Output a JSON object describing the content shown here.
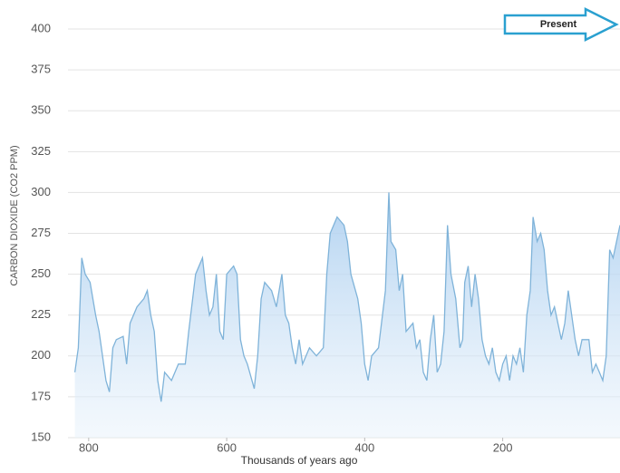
{
  "chart_data": {
    "type": "area",
    "y_label": "CARBON DIOXIDE (CO2 PPM)",
    "x_label": "Thousands of years ago",
    "annotation": "Present",
    "x": [
      820,
      815,
      810,
      805,
      798,
      790,
      785,
      780,
      775,
      770,
      765,
      760,
      750,
      745,
      740,
      730,
      720,
      715,
      710,
      705,
      700,
      695,
      690,
      680,
      670,
      660,
      655,
      645,
      635,
      630,
      625,
      620,
      615,
      610,
      605,
      600,
      590,
      585,
      580,
      575,
      570,
      560,
      555,
      550,
      545,
      535,
      528,
      520,
      515,
      510,
      505,
      500,
      495,
      490,
      480,
      470,
      460,
      455,
      450,
      440,
      430,
      425,
      420,
      410,
      405,
      400,
      395,
      390,
      380,
      370,
      365,
      362,
      355,
      350,
      345,
      340,
      330,
      325,
      320,
      315,
      310,
      305,
      300,
      295,
      290,
      285,
      280,
      275,
      268,
      262,
      258,
      255,
      250,
      245,
      240,
      235,
      230,
      225,
      220,
      215,
      210,
      205,
      200,
      195,
      190,
      185,
      180,
      175,
      170,
      165,
      160,
      156,
      150,
      145,
      140,
      135,
      130,
      125,
      120,
      115,
      110,
      105,
      100,
      95,
      90,
      85,
      75,
      70,
      65,
      60,
      55,
      50,
      45,
      40,
      35,
      30
    ],
    "series": [
      {
        "name": "CO2",
        "color": "#7fb3d9",
        "values": [
          190,
          205,
          260,
          250,
          245,
          225,
          215,
          200,
          185,
          178,
          205,
          210,
          212,
          195,
          220,
          230,
          235,
          240,
          225,
          215,
          185,
          172,
          190,
          185,
          195,
          195,
          215,
          250,
          260,
          240,
          225,
          230,
          250,
          215,
          210,
          250,
          255,
          250,
          210,
          200,
          195,
          180,
          200,
          235,
          245,
          240,
          230,
          250,
          225,
          220,
          205,
          195,
          210,
          195,
          205,
          200,
          205,
          250,
          275,
          285,
          280,
          270,
          250,
          235,
          220,
          195,
          185,
          200,
          205,
          240,
          300,
          270,
          265,
          240,
          250,
          215,
          220,
          205,
          210,
          190,
          185,
          210,
          225,
          190,
          195,
          215,
          280,
          250,
          235,
          205,
          210,
          245,
          255,
          230,
          250,
          235,
          210,
          200,
          195,
          205,
          190,
          185,
          195,
          200,
          185,
          200,
          195,
          205,
          190,
          225,
          240,
          285,
          270,
          275,
          265,
          240,
          225,
          230,
          220,
          210,
          220,
          240,
          225,
          210,
          200,
          210,
          210,
          190,
          195,
          190,
          185,
          200,
          265,
          260,
          270,
          280
        ]
      }
    ],
    "xlim": [
      830,
      30
    ],
    "ylim": [
      150,
      415
    ],
    "xticks": [
      800,
      600,
      400,
      200
    ],
    "yticks": [
      150,
      175,
      200,
      225,
      250,
      275,
      300,
      325,
      350,
      375,
      400
    ],
    "grid": true
  }
}
